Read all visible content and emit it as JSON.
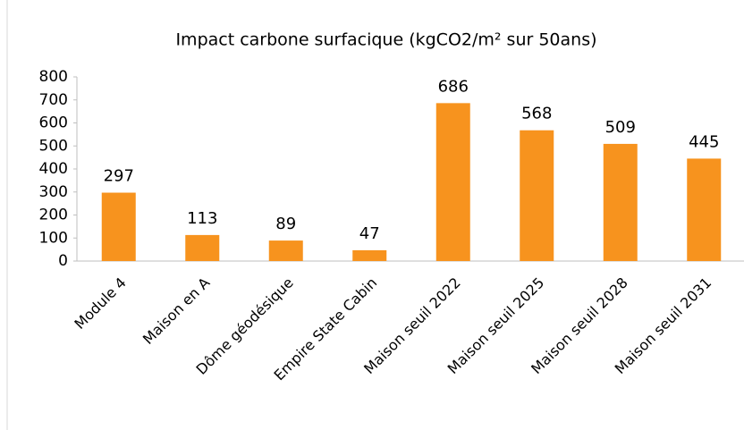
{
  "chart_data": {
    "type": "bar",
    "title": "Impact carbone surfacique (kgCO2/m² sur 50ans)",
    "categories": [
      "Module 4",
      "Maison en A",
      "Dôme géodésique",
      "Empire State Cabin",
      "Maison seuil 2022",
      "Maison seuil 2025",
      "Maison seuil 2028",
      "Maison seuil 2031"
    ],
    "values": [
      297,
      113,
      89,
      47,
      686,
      568,
      509,
      445
    ],
    "color": "#f7931e",
    "ylim": [
      0,
      800
    ],
    "yticks": [
      0,
      100,
      200,
      300,
      400,
      500,
      600,
      700,
      800
    ],
    "grid": false
  }
}
